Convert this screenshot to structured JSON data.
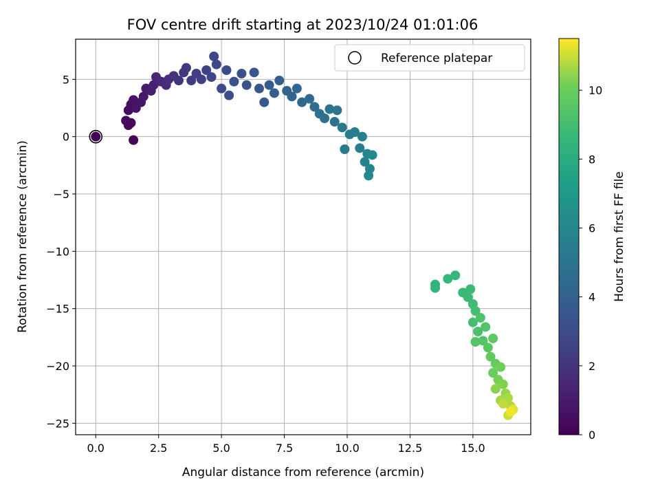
{
  "chart_data": {
    "type": "scatter",
    "title": "FOV centre drift starting at 2023/10/24 01:01:06",
    "xlabel": "Angular distance from reference (arcmin)",
    "ylabel": "Rotation from reference (arcmin)",
    "xlim": [
      -0.8,
      17.3
    ],
    "ylim": [
      -26.0,
      8.5
    ],
    "xticks": [
      "0.0",
      "2.5",
      "5.0",
      "7.5",
      "10.0",
      "12.5",
      "15.0"
    ],
    "yticks": [
      "5",
      "0",
      "−5",
      "−10",
      "−15",
      "−20",
      "−25"
    ],
    "grid": true,
    "legend": {
      "position": "top-right",
      "entries": [
        "Reference platepar"
      ]
    },
    "colorbar": {
      "label": "Hours from first FF file",
      "min": 0,
      "max": 11.5,
      "ticks": [
        "0",
        "2",
        "4",
        "6",
        "8",
        "10"
      ],
      "colormap": "viridis"
    },
    "reference_point": {
      "x": 0.0,
      "y": 0.0
    },
    "points": [
      {
        "x": 0.0,
        "y": 0.0,
        "h": 0.0
      },
      {
        "x": 1.5,
        "y": -0.3,
        "h": 0.1
      },
      {
        "x": 1.2,
        "y": 1.4,
        "h": 0.2
      },
      {
        "x": 1.3,
        "y": 1.0,
        "h": 0.25
      },
      {
        "x": 1.4,
        "y": 1.2,
        "h": 0.3
      },
      {
        "x": 1.3,
        "y": 2.3,
        "h": 0.4
      },
      {
        "x": 1.4,
        "y": 2.8,
        "h": 0.5
      },
      {
        "x": 1.5,
        "y": 3.2,
        "h": 0.6
      },
      {
        "x": 1.6,
        "y": 2.5,
        "h": 0.7
      },
      {
        "x": 1.8,
        "y": 3.0,
        "h": 0.8
      },
      {
        "x": 1.9,
        "y": 3.5,
        "h": 0.9
      },
      {
        "x": 2.0,
        "y": 4.2,
        "h": 1.0
      },
      {
        "x": 2.2,
        "y": 4.0,
        "h": 1.1
      },
      {
        "x": 2.3,
        "y": 4.5,
        "h": 1.2
      },
      {
        "x": 2.4,
        "y": 5.2,
        "h": 1.4
      },
      {
        "x": 2.6,
        "y": 4.8,
        "h": 1.5
      },
      {
        "x": 2.8,
        "y": 4.5,
        "h": 1.6
      },
      {
        "x": 2.9,
        "y": 5.0,
        "h": 1.7
      },
      {
        "x": 3.1,
        "y": 5.3,
        "h": 1.9
      },
      {
        "x": 3.3,
        "y": 4.9,
        "h": 2.0
      },
      {
        "x": 3.5,
        "y": 5.6,
        "h": 2.1
      },
      {
        "x": 3.6,
        "y": 6.0,
        "h": 2.2
      },
      {
        "x": 3.8,
        "y": 4.9,
        "h": 2.3
      },
      {
        "x": 4.0,
        "y": 5.5,
        "h": 2.4
      },
      {
        "x": 4.2,
        "y": 5.0,
        "h": 2.5
      },
      {
        "x": 4.4,
        "y": 5.8,
        "h": 2.6
      },
      {
        "x": 4.6,
        "y": 5.2,
        "h": 2.7
      },
      {
        "x": 4.7,
        "y": 7.0,
        "h": 2.8
      },
      {
        "x": 4.8,
        "y": 6.3,
        "h": 2.85
      },
      {
        "x": 5.0,
        "y": 4.2,
        "h": 2.9
      },
      {
        "x": 5.2,
        "y": 5.8,
        "h": 3.0
      },
      {
        "x": 5.3,
        "y": 3.6,
        "h": 3.1
      },
      {
        "x": 5.5,
        "y": 4.8,
        "h": 3.2
      },
      {
        "x": 5.8,
        "y": 5.5,
        "h": 3.3
      },
      {
        "x": 6.0,
        "y": 4.5,
        "h": 3.4
      },
      {
        "x": 6.3,
        "y": 5.6,
        "h": 3.5
      },
      {
        "x": 6.5,
        "y": 4.2,
        "h": 3.6
      },
      {
        "x": 6.7,
        "y": 3.0,
        "h": 3.7
      },
      {
        "x": 6.9,
        "y": 4.5,
        "h": 3.8
      },
      {
        "x": 7.1,
        "y": 3.8,
        "h": 3.9
      },
      {
        "x": 7.3,
        "y": 4.9,
        "h": 4.0
      },
      {
        "x": 7.6,
        "y": 4.0,
        "h": 4.1
      },
      {
        "x": 7.8,
        "y": 3.5,
        "h": 4.2
      },
      {
        "x": 8.0,
        "y": 4.2,
        "h": 4.3
      },
      {
        "x": 8.2,
        "y": 3.0,
        "h": 4.4
      },
      {
        "x": 8.5,
        "y": 3.3,
        "h": 4.5
      },
      {
        "x": 8.7,
        "y": 2.6,
        "h": 4.6
      },
      {
        "x": 8.9,
        "y": 2.0,
        "h": 4.7
      },
      {
        "x": 9.1,
        "y": 1.6,
        "h": 4.8
      },
      {
        "x": 9.3,
        "y": 2.4,
        "h": 4.9
      },
      {
        "x": 9.5,
        "y": 1.3,
        "h": 5.0
      },
      {
        "x": 9.6,
        "y": 2.3,
        "h": 5.1
      },
      {
        "x": 9.8,
        "y": 0.8,
        "h": 5.2
      },
      {
        "x": 9.9,
        "y": -1.1,
        "h": 5.3
      },
      {
        "x": 10.1,
        "y": 0.2,
        "h": 5.4
      },
      {
        "x": 10.3,
        "y": 0.4,
        "h": 5.5
      },
      {
        "x": 10.5,
        "y": -1.0,
        "h": 5.6
      },
      {
        "x": 10.6,
        "y": 0.0,
        "h": 5.7
      },
      {
        "x": 10.7,
        "y": -2.2,
        "h": 5.8
      },
      {
        "x": 10.8,
        "y": -1.5,
        "h": 5.9
      },
      {
        "x": 10.9,
        "y": -2.8,
        "h": 6.0
      },
      {
        "x": 11.0,
        "y": -1.6,
        "h": 6.1
      },
      {
        "x": 10.85,
        "y": -3.4,
        "h": 6.2
      },
      {
        "x": 13.5,
        "y": -12.9,
        "h": 8.5
      },
      {
        "x": 13.5,
        "y": -13.2,
        "h": 8.5
      },
      {
        "x": 14.0,
        "y": -12.4,
        "h": 8.6
      },
      {
        "x": 14.3,
        "y": -12.1,
        "h": 8.6
      },
      {
        "x": 14.6,
        "y": -13.6,
        "h": 8.7
      },
      {
        "x": 14.8,
        "y": -14.0,
        "h": 8.8
      },
      {
        "x": 14.9,
        "y": -13.3,
        "h": 8.8
      },
      {
        "x": 15.0,
        "y": -14.6,
        "h": 8.9
      },
      {
        "x": 15.1,
        "y": -15.2,
        "h": 9.0
      },
      {
        "x": 15.0,
        "y": -16.2,
        "h": 9.1
      },
      {
        "x": 15.2,
        "y": -17.0,
        "h": 9.2
      },
      {
        "x": 15.3,
        "y": -15.8,
        "h": 9.3
      },
      {
        "x": 15.5,
        "y": -16.6,
        "h": 9.4
      },
      {
        "x": 15.4,
        "y": -17.8,
        "h": 9.5
      },
      {
        "x": 15.1,
        "y": -17.9,
        "h": 9.5
      },
      {
        "x": 15.6,
        "y": -18.4,
        "h": 9.6
      },
      {
        "x": 15.8,
        "y": -17.6,
        "h": 9.7
      },
      {
        "x": 15.7,
        "y": -19.2,
        "h": 9.8
      },
      {
        "x": 15.9,
        "y": -19.8,
        "h": 9.9
      },
      {
        "x": 15.8,
        "y": -20.6,
        "h": 10.0
      },
      {
        "x": 16.1,
        "y": -20.1,
        "h": 10.1
      },
      {
        "x": 16.0,
        "y": -21.2,
        "h": 10.2
      },
      {
        "x": 16.2,
        "y": -21.6,
        "h": 10.3
      },
      {
        "x": 15.9,
        "y": -22.0,
        "h": 10.4
      },
      {
        "x": 16.3,
        "y": -22.4,
        "h": 10.5
      },
      {
        "x": 16.1,
        "y": -23.0,
        "h": 10.6
      },
      {
        "x": 16.4,
        "y": -22.8,
        "h": 10.7
      },
      {
        "x": 16.5,
        "y": -23.5,
        "h": 10.8
      },
      {
        "x": 16.2,
        "y": -23.3,
        "h": 10.9
      },
      {
        "x": 16.4,
        "y": -24.3,
        "h": 11.0
      },
      {
        "x": 16.6,
        "y": -23.8,
        "h": 11.2
      },
      {
        "x": 16.5,
        "y": -24.0,
        "h": 11.4
      }
    ]
  }
}
